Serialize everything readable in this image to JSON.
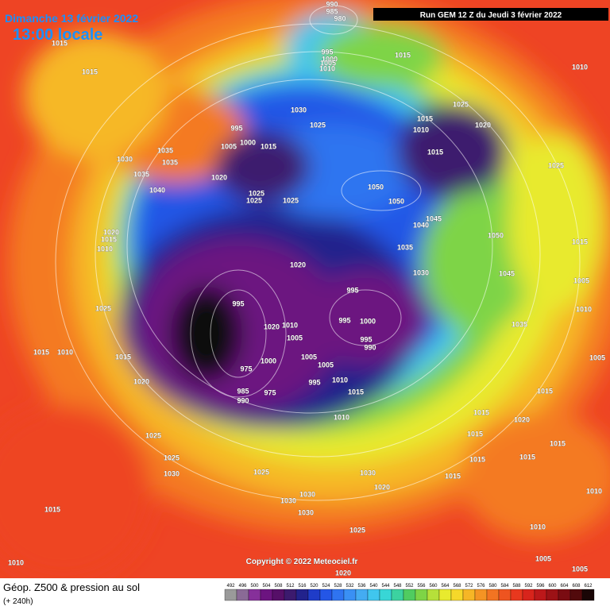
{
  "header": {
    "date": "Dimanche 13 février 2022",
    "time": "13:00 locale",
    "run": "Run GEM 12 Z du Jeudi 3 février 2022"
  },
  "copyright": "Copyright © 2022 Meteociel.fr",
  "footer": {
    "title": "Géop. Z500 & pression au sol",
    "subtitle": "(+ 240h)"
  },
  "legend": {
    "values": [
      492,
      496,
      500,
      504,
      508,
      512,
      516,
      520,
      524,
      528,
      532,
      536,
      540,
      544,
      548,
      552,
      556,
      560,
      564,
      568,
      572,
      576,
      580,
      584,
      588,
      592,
      596,
      600,
      604,
      608,
      612
    ],
    "colors": [
      "#9a9a9a",
      "#8a6a96",
      "#86309a",
      "#6c1480",
      "#560f68",
      "#3c1a6e",
      "#22228c",
      "#1f3cc8",
      "#2456e6",
      "#2f74f0",
      "#3a90f4",
      "#44acf2",
      "#40c6ee",
      "#38d6d6",
      "#3cd2a0",
      "#50cc60",
      "#7ed446",
      "#b6e03a",
      "#e8ea2e",
      "#f6d82a",
      "#f6b626",
      "#f49424",
      "#f27422",
      "#ee5420",
      "#e8381e",
      "#d8241c",
      "#bc181a",
      "#9c1216",
      "#7a0c12",
      "#520a0c",
      "#1a0606"
    ]
  },
  "isobar_labels": [
    990,
    985,
    980,
    1015,
    1015,
    995,
    1000,
    1005,
    1010,
    1015,
    1010,
    1030,
    1025,
    1025,
    1015,
    1010,
    1015,
    1020,
    995,
    1005,
    1000,
    1015,
    1035,
    1030,
    1035,
    1035,
    1040,
    1020,
    1025,
    1025,
    1025,
    1050,
    1050,
    1045,
    1040,
    1050,
    1025,
    1020,
    1015,
    1010,
    1035,
    1030,
    1020,
    1045,
    1015,
    1005,
    1010,
    1025,
    995,
    995,
    995,
    1000,
    995,
    990,
    1010,
    1020,
    1005,
    1035,
    1015,
    1010,
    1015,
    1005,
    1005,
    1010,
    995,
    1000,
    975,
    1015,
    1020,
    985,
    990,
    975,
    1015,
    1005,
    1010,
    1015,
    1020,
    1025,
    1025,
    1030,
    1015,
    1015,
    1015,
    1015,
    1015,
    1025,
    1030,
    1020,
    1030,
    1030,
    1030,
    1015,
    1010,
    1025,
    1010,
    1010,
    1005,
    1020,
    1005
  ]
}
